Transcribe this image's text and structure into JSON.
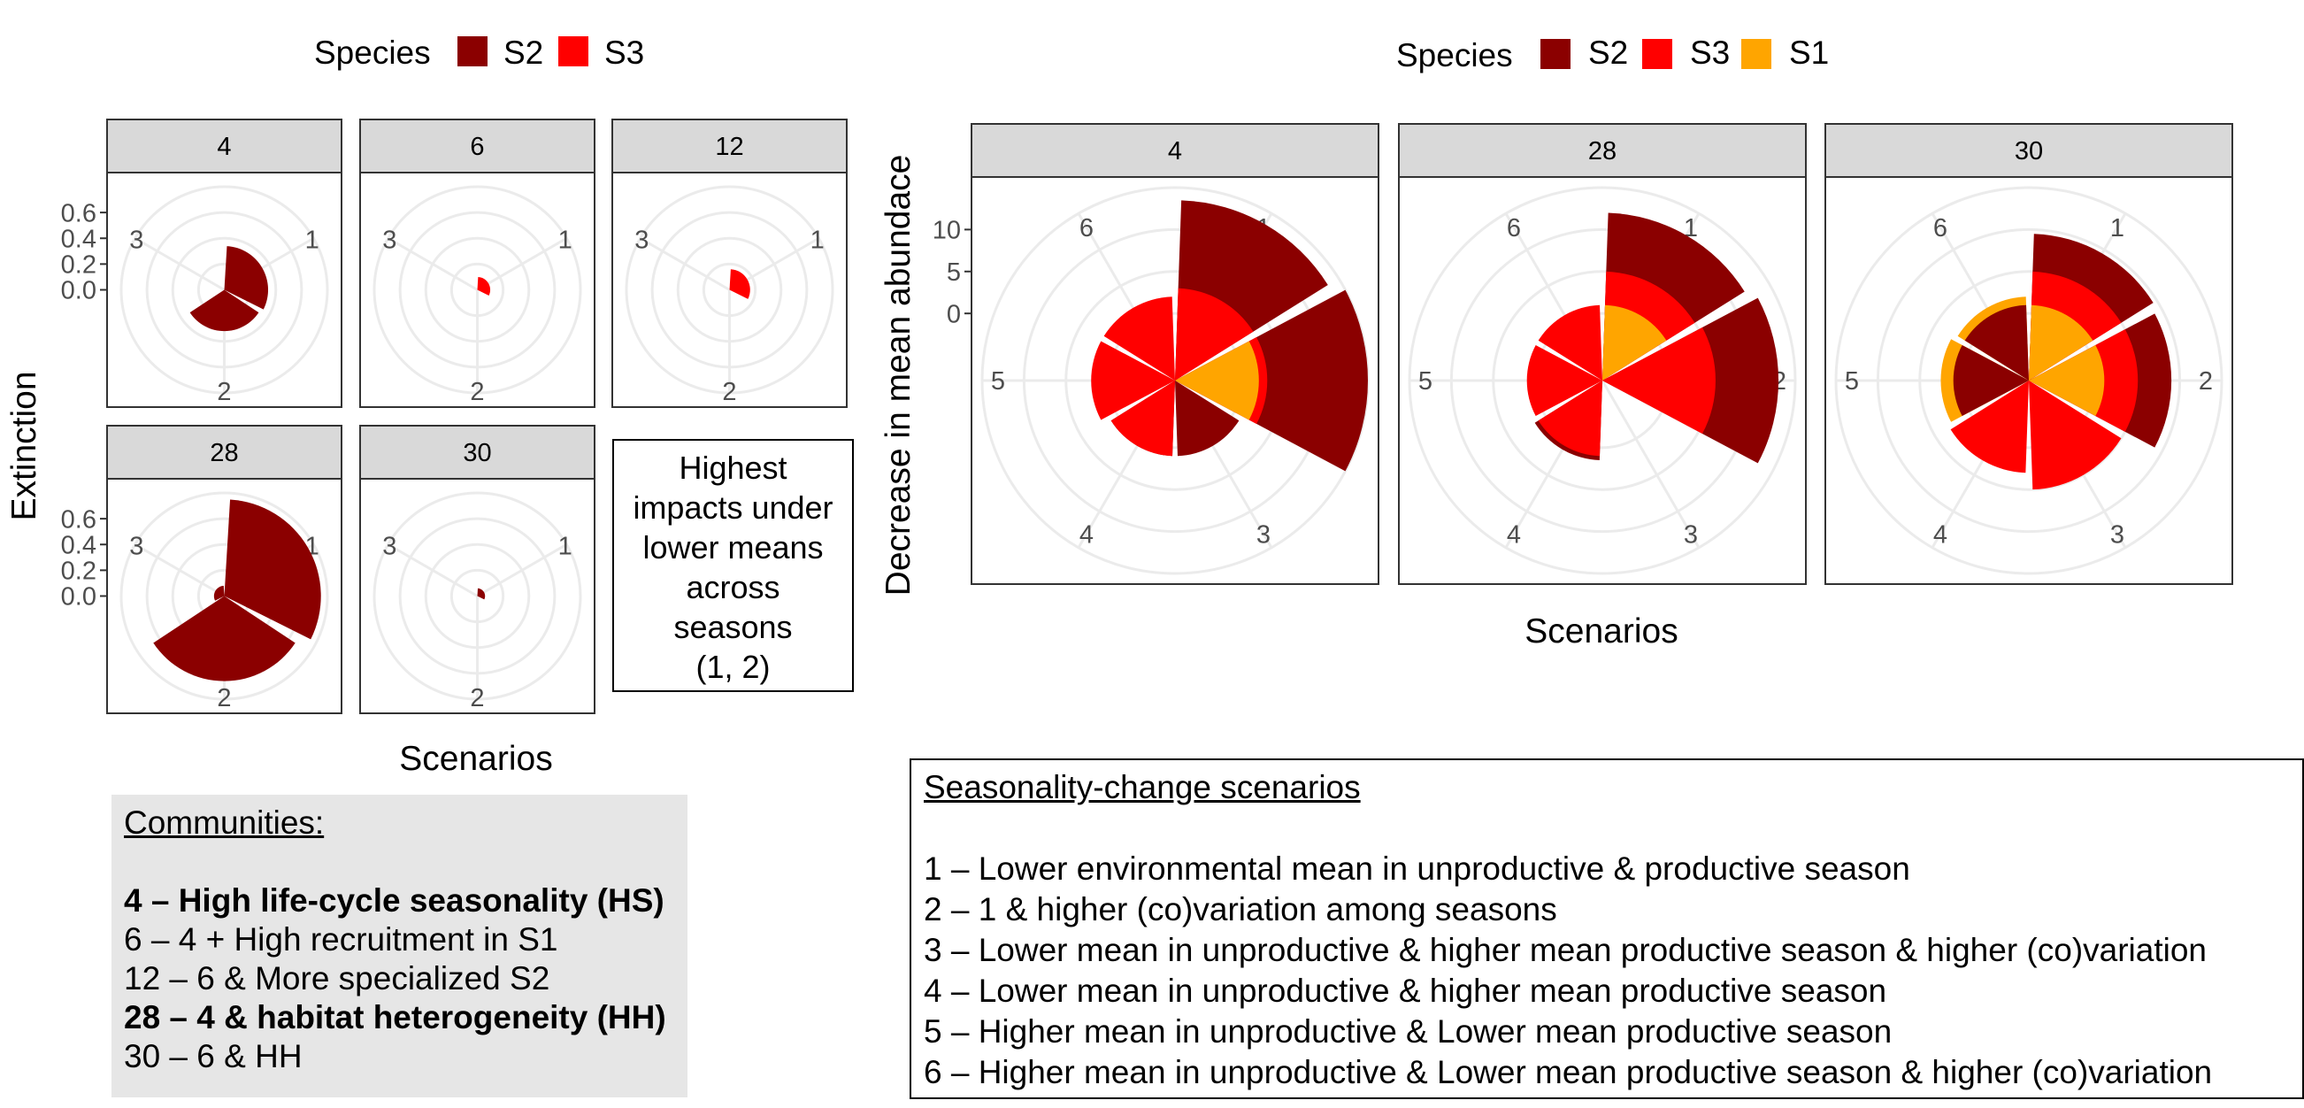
{
  "chart_data": [
    {
      "type": "polar-bar",
      "panel_set": "extinction",
      "legend": {
        "title": "Species",
        "entries": [
          "S2",
          "S3"
        ]
      },
      "ylabel": "Extinction",
      "xlabel": "Scenarios",
      "ylim": [
        0,
        0.8
      ],
      "yticks": [
        0.0,
        0.2,
        0.4,
        0.6
      ],
      "scenarios": [
        "1",
        "2",
        "3"
      ],
      "panels": [
        {
          "label": "4",
          "series": [
            {
              "name": "S2",
              "values": [
                0.34,
                0.32,
                0.0
              ]
            },
            {
              "name": "S3",
              "values": [
                0.0,
                0.0,
                0.0
              ]
            }
          ]
        },
        {
          "label": "6",
          "series": [
            {
              "name": "S2",
              "values": [
                0.0,
                0.0,
                0.0
              ]
            },
            {
              "name": "S3",
              "values": [
                0.1,
                0.0,
                0.0
              ]
            }
          ]
        },
        {
          "label": "12",
          "series": [
            {
              "name": "S2",
              "values": [
                0.0,
                0.0,
                0.0
              ]
            },
            {
              "name": "S3",
              "values": [
                0.16,
                0.0,
                0.0
              ]
            }
          ]
        },
        {
          "label": "28",
          "series": [
            {
              "name": "S2",
              "values": [
                0.75,
                0.66,
                0.08
              ]
            },
            {
              "name": "S3",
              "values": [
                0.0,
                0.0,
                0.0
              ]
            }
          ]
        },
        {
          "label": "30",
          "series": [
            {
              "name": "S2",
              "values": [
                0.06,
                0.0,
                0.0
              ]
            },
            {
              "name": "S3",
              "values": [
                0.0,
                0.0,
                0.0
              ]
            }
          ]
        }
      ],
      "annotation": [
        "Highest",
        "impacts under",
        "lower means",
        "across",
        "seasons",
        "(1, 2)"
      ]
    },
    {
      "type": "polar-bar",
      "panel_set": "abundance",
      "legend": {
        "title": "Species",
        "entries": [
          "S2",
          "S3",
          "S1"
        ]
      },
      "ylabel": "Decrease in mean abundace",
      "xlabel": "Scenarios",
      "ylim": [
        -8,
        15
      ],
      "yticks": [
        0,
        5,
        10
      ],
      "scenarios": [
        "1",
        "2",
        "3",
        "4",
        "5",
        "6"
      ],
      "panels": [
        {
          "label": "4",
          "series": [
            {
              "name": "S2",
              "values": [
                13.5,
                15,
                1,
                1,
                0,
                0
              ]
            },
            {
              "name": "S3",
              "values": [
                3,
                3,
                0,
                1,
                2,
                2
              ]
            },
            {
              "name": "S1",
              "values": [
                0,
                2,
                0,
                0,
                0,
                0
              ]
            }
          ]
        },
        {
          "label": "28",
          "series": [
            {
              "name": "S2",
              "values": [
                12,
                13,
                0,
                1.5,
                0,
                0
              ]
            },
            {
              "name": "S3",
              "values": [
                5,
                5.5,
                0,
                1,
                1,
                1
              ]
            },
            {
              "name": "S1",
              "values": [
                1,
                0,
                0,
                0,
                0,
                0
              ]
            }
          ]
        },
        {
          "label": "30",
          "series": [
            {
              "name": "S2",
              "values": [
                9.5,
                9,
                0,
                0,
                1,
                1
              ]
            },
            {
              "name": "S3",
              "values": [
                5,
                5,
                5,
                3,
                0,
                0
              ]
            },
            {
              "name": "S1",
              "values": [
                1,
                1,
                0,
                0,
                2.5,
                2
              ]
            }
          ]
        }
      ]
    }
  ],
  "colors": {
    "S2": "#8b0000",
    "S3": "#ff0000",
    "S1": "#ffa500"
  },
  "communities": {
    "title": "Communities:",
    "items": [
      {
        "text": "4 – High life-cycle seasonality (HS)",
        "bold": true
      },
      {
        "text": "6 – 4 + High recruitment in S1",
        "bold": false
      },
      {
        "text": "12 – 6 & More specialized S2",
        "bold": false
      },
      {
        "text": "28 – 4 & habitat heterogeneity (HH)",
        "bold": true
      },
      {
        "text": "30 – 6 & HH",
        "bold": false
      }
    ]
  },
  "seasonality": {
    "title": "Seasonality-change scenarios",
    "items": [
      "1 – Lower environmental mean in unproductive & productive season",
      "2 – 1 & higher (co)variation among seasons",
      "3 – Lower mean in unproductive & higher mean productive season & higher (co)variation",
      "4 – Lower mean in unproductive & higher mean productive season",
      "5 – Higher mean in unproductive & Lower mean productive season",
      "6 – Higher mean in unproductive & Lower mean productive season & higher (co)variation"
    ]
  }
}
